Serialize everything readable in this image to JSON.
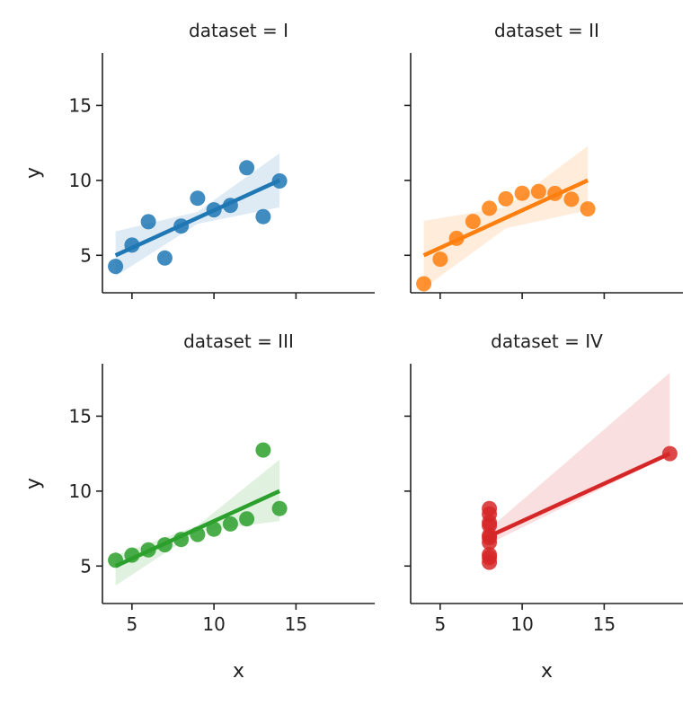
{
  "chart_data": [
    {
      "type": "scatter",
      "title": "dataset = I",
      "xlabel": "",
      "ylabel": "y",
      "color": "#1f77b4",
      "xlim": [
        3.2,
        19.8
      ],
      "ylim": [
        2.5,
        18.5
      ],
      "xticks": [
        5,
        10,
        15
      ],
      "yticks": [
        5,
        10,
        15
      ],
      "x": [
        10,
        8,
        13,
        9,
        11,
        14,
        6,
        4,
        12,
        7,
        5
      ],
      "y": [
        8.04,
        6.95,
        7.58,
        8.81,
        8.33,
        9.96,
        7.24,
        4.26,
        10.84,
        4.82,
        5.68
      ],
      "regression": {
        "x": [
          4,
          14
        ],
        "y": [
          5.0,
          10.0
        ]
      },
      "ci": {
        "x": [
          4,
          9,
          14
        ],
        "lower": [
          3.6,
          7.1,
          8.2
        ],
        "upper": [
          6.6,
          7.9,
          11.8
        ]
      }
    },
    {
      "type": "scatter",
      "title": "dataset = II",
      "xlabel": "",
      "ylabel": "",
      "color": "#ff7f0e",
      "xlim": [
        3.2,
        19.8
      ],
      "ylim": [
        2.5,
        18.5
      ],
      "xticks": [
        5,
        10,
        15
      ],
      "yticks": [
        5,
        10,
        15
      ],
      "x": [
        10,
        8,
        13,
        9,
        11,
        14,
        6,
        4,
        12,
        7,
        5
      ],
      "y": [
        9.14,
        8.14,
        8.74,
        8.77,
        9.26,
        8.1,
        6.13,
        3.1,
        9.13,
        7.26,
        4.74
      ],
      "regression": {
        "x": [
          4,
          14
        ],
        "y": [
          5.0,
          10.0
        ]
      },
      "ci": {
        "x": [
          4,
          9,
          14
        ],
        "lower": [
          2.8,
          6.8,
          8.0
        ],
        "upper": [
          7.3,
          8.2,
          12.3
        ]
      }
    },
    {
      "type": "scatter",
      "title": "dataset = III",
      "xlabel": "x",
      "ylabel": "y",
      "color": "#2ca02c",
      "xlim": [
        3.2,
        19.8
      ],
      "ylim": [
        2.5,
        18.5
      ],
      "xticks": [
        5,
        10,
        15
      ],
      "yticks": [
        5,
        10,
        15
      ],
      "x": [
        10,
        8,
        13,
        9,
        11,
        14,
        6,
        4,
        12,
        7,
        5
      ],
      "y": [
        7.46,
        6.77,
        12.74,
        7.11,
        7.81,
        8.84,
        6.08,
        5.39,
        8.15,
        6.42,
        5.73
      ],
      "regression": {
        "x": [
          4,
          14
        ],
        "y": [
          5.0,
          10.0
        ]
      },
      "ci": {
        "x": [
          4,
          9,
          14
        ],
        "lower": [
          3.7,
          7.3,
          8.0
        ],
        "upper": [
          5.7,
          7.7,
          12.1
        ]
      }
    },
    {
      "type": "scatter",
      "title": "dataset = IV",
      "xlabel": "x",
      "ylabel": "",
      "color": "#d62728",
      "xlim": [
        3.2,
        19.8
      ],
      "ylim": [
        2.5,
        18.5
      ],
      "xticks": [
        5,
        10,
        15
      ],
      "yticks": [
        5,
        10,
        15
      ],
      "x": [
        8,
        8,
        8,
        8,
        8,
        8,
        8,
        19,
        8,
        8,
        8
      ],
      "y": [
        6.58,
        5.76,
        7.71,
        8.84,
        8.47,
        7.04,
        5.25,
        12.5,
        5.56,
        7.91,
        6.89
      ],
      "regression": {
        "x": [
          8,
          19
        ],
        "y": [
          7.0,
          12.5
        ]
      },
      "ci": {
        "x": [
          8,
          19
        ],
        "lower": [
          6.5,
          12.4
        ],
        "upper": [
          7.5,
          17.9
        ]
      }
    }
  ]
}
